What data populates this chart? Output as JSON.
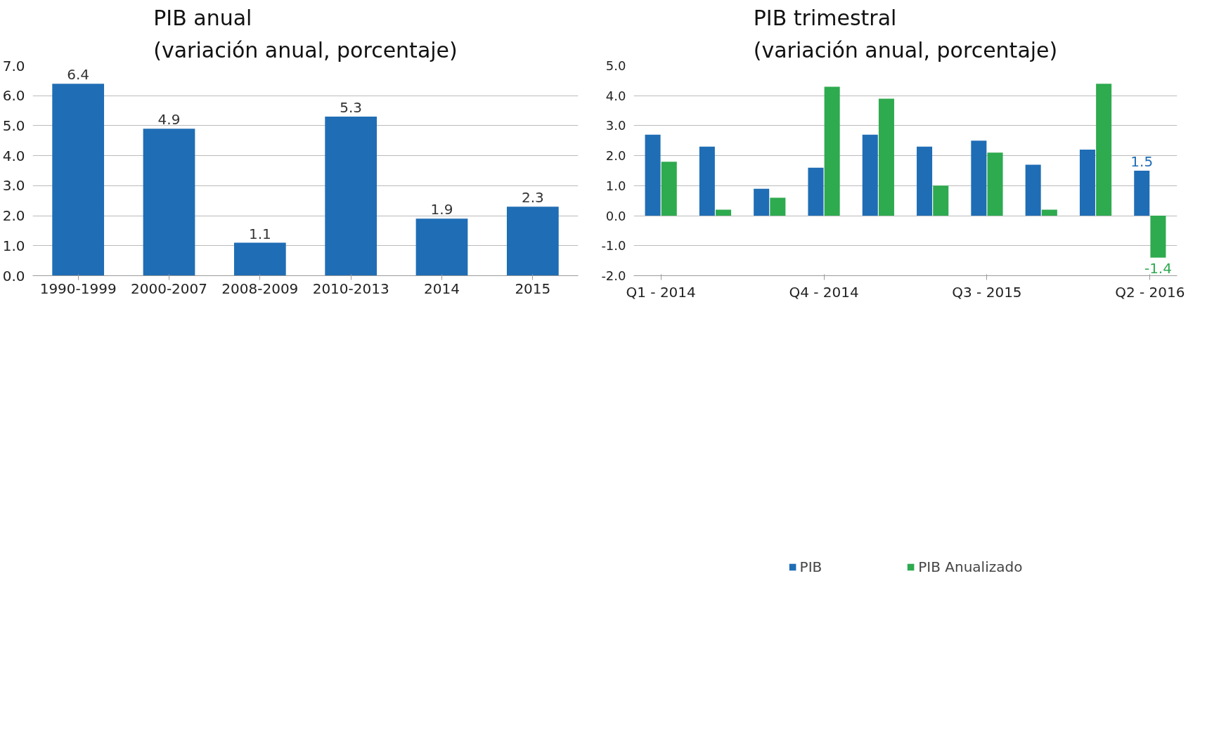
{
  "chart_data": [
    {
      "type": "bar",
      "title": "PIB anual\n(variación anual, porcentaje)",
      "categories": [
        "1990-1999",
        "2000-2007",
        "2008-2009",
        "2010-2013",
        "2014",
        "2015"
      ],
      "series": [
        {
          "color": "#1f6db5",
          "values": [
            6.4,
            4.9,
            1.1,
            5.3,
            1.9,
            2.3
          ]
        }
      ],
      "data_labels": true,
      "ylim": [
        0,
        7
      ],
      "yticks": [
        {
          "value": 0,
          "label": "0.0"
        },
        {
          "value": 1,
          "label": "1.0"
        },
        {
          "value": 2,
          "label": "2.0"
        },
        {
          "value": 3,
          "label": "3.0"
        },
        {
          "value": 4,
          "label": "4.0"
        },
        {
          "value": 5,
          "label": "5.0"
        },
        {
          "value": 6,
          "label": "6.0"
        },
        {
          "value": 7,
          "label": "7.0"
        }
      ],
      "grid": "y",
      "legend": false
    },
    {
      "type": "bar",
      "title": "PIB trimestral\n(variación anual, porcentaje)",
      "categories": [
        "Q1 - 2014",
        null,
        null,
        "Q4 - 2014",
        null,
        null,
        "Q3 - 2015",
        null,
        null,
        "Q2 - 2016"
      ],
      "series": [
        {
          "name": "PIB",
          "color": "#1f6db5",
          "values": [
            2.7,
            2.3,
            0.9,
            1.6,
            2.7,
            2.3,
            2.5,
            1.7,
            2.2,
            1.5
          ],
          "value_labels": [
            null,
            null,
            null,
            null,
            null,
            null,
            null,
            null,
            null,
            "1.5"
          ]
        },
        {
          "name": "PIB Anualizado",
          "color": "#2eaa4f",
          "values": [
            1.8,
            0.2,
            0.6,
            4.3,
            3.9,
            1.0,
            2.1,
            0.2,
            4.4,
            -1.4
          ],
          "value_labels": [
            null,
            null,
            null,
            null,
            null,
            null,
            null,
            null,
            null,
            "-1.4"
          ]
        }
      ],
      "ylim": [
        -2,
        5
      ],
      "yticks": [
        {
          "value": -2,
          "label": "-2.0"
        },
        {
          "value": -1,
          "label": "-1.0"
        },
        {
          "value": 0,
          "label": "0.0"
        },
        {
          "value": 1,
          "label": "1.0"
        },
        {
          "value": 2,
          "label": "2.0"
        },
        {
          "value": 3,
          "label": "3.0"
        },
        {
          "value": 4,
          "label": "4.0"
        },
        {
          "value": 5,
          "label": "5.0"
        }
      ],
      "grid": "y",
      "legend": "bottom"
    }
  ]
}
